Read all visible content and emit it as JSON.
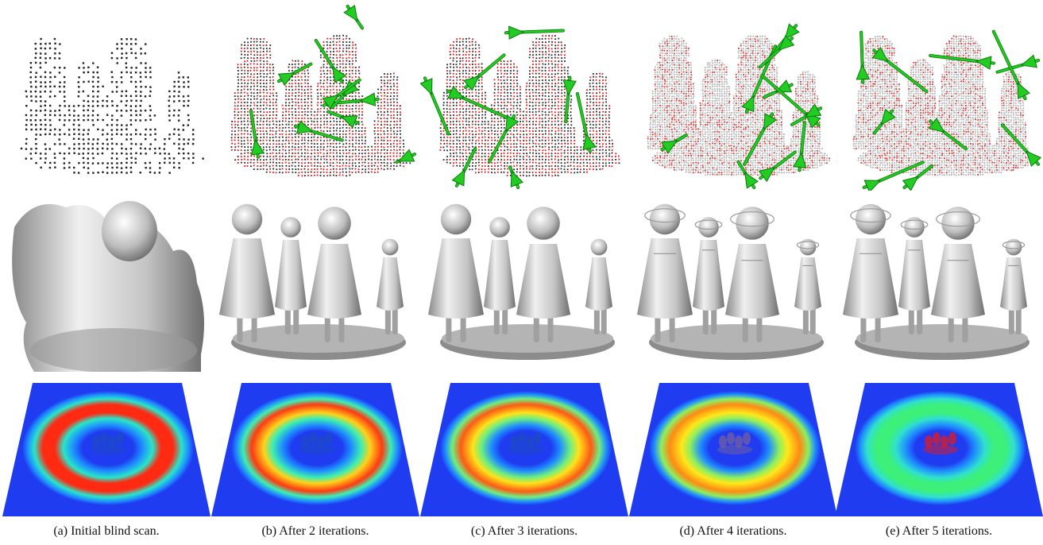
{
  "figure": {
    "columns": [
      {
        "caption": "(a)  Initial blind scan.",
        "scan_style": "sparse",
        "arrow_count": 0,
        "mesh_detail": "blob",
        "heat_ring": "red"
      },
      {
        "caption": "(b)  After 2 iterations.",
        "scan_style": "red",
        "arrow_count": 10,
        "mesh_detail": "coarse",
        "heat_ring": "red-yellow"
      },
      {
        "caption": "(c)  After 3 iterations.",
        "scan_style": "red",
        "arrow_count": 9,
        "mesh_detail": "medium",
        "heat_ring": "yellow-red"
      },
      {
        "caption": "(d)  After 4 iterations.",
        "scan_style": "dense",
        "arrow_count": 11,
        "mesh_detail": "fine",
        "heat_ring": "yellow"
      },
      {
        "caption": "(e)  After 5 iterations.",
        "scan_style": "dense",
        "arrow_count": 10,
        "mesh_detail": "finest",
        "heat_ring": "green"
      }
    ],
    "colors": {
      "arrow": "#22cc22",
      "arrow_edge": "#0a7a0a",
      "point_dark": "#222222",
      "point_red": "#d81818",
      "heatmap_floor": "#1f3cf0",
      "mesh_light": "#f0f0f0",
      "mesh_dark": "#8a8a8a"
    }
  }
}
